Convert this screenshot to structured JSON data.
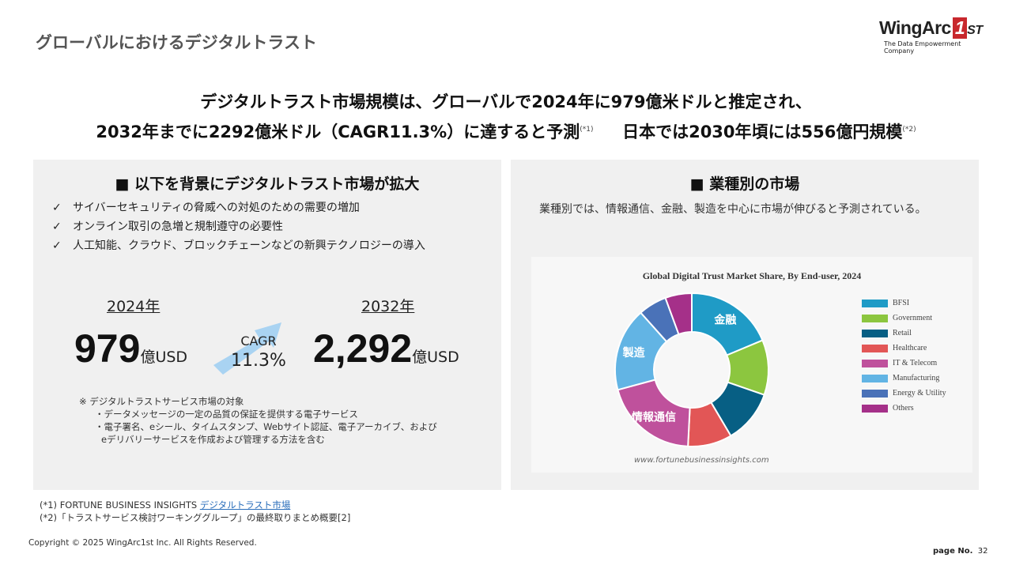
{
  "title": "グローバルにおけるデジタルトラスト",
  "logo": {
    "word": "WingArc",
    "one": "1",
    "st": "ST",
    "tagline": "The Data Empowerment Company"
  },
  "headline": {
    "line1": "デジタルトラスト市場規模は、グローバルで2024年に979億米ドルと推定され、",
    "line2a": "2032年までに2292億米ドル（CAGR11.3%）に達すると予測",
    "ref1": "(*1)",
    "line2b": "日本では2030年頃には556億円規模",
    "ref2": "(*2)"
  },
  "left": {
    "heading": "■ 以下を背景にデジタルトラスト市場が拡大",
    "check": "✓",
    "bullets": [
      "サイバーセキュリティの脅威への対処のための需要の増加",
      "オンライン取引の急増と規制遵守の必要性",
      "人工知能、クラウド、ブロックチェーンなどの新興テクノロジーの導入"
    ],
    "year1": "2024年",
    "value1": "979",
    "unit1": "億USD",
    "year2": "2032年",
    "value2": "2,292",
    "unit2": "億USD",
    "cagr_label": "CAGR",
    "cagr_value": "11.3%",
    "notes": [
      "※ デジタルトラストサービス市場の対象",
      "・データメッセージの一定の品質の保証を提供する電子サービス",
      "・電子署名、eシール、タイムスタンプ、Webサイト認証、電子アーカイブ、および",
      "eデリバリーサービスを作成および管理する方法を含む"
    ]
  },
  "right": {
    "heading": "■ 業種別の市場",
    "text": "業種別では、情報通信、金融、製造を中心に市場が伸びると予測されている。"
  },
  "chart_data": {
    "type": "pie",
    "donut": true,
    "title": "Global Digital Trust Market Share, By End-user, 2024",
    "legend": "right",
    "source": "www.fortunebusinessinsights.com",
    "categories": [
      "BFSI",
      "Government",
      "Retail",
      "Healthcare",
      "IT & Telecom",
      "Manufacturing",
      "Energy & Utility",
      "Others"
    ],
    "values": [
      18.7,
      11.6,
      11.2,
      9.3,
      20.0,
      17.6,
      6.0,
      5.6
    ],
    "colors": [
      "#1f9bc6",
      "#8cc63f",
      "#075f84",
      "#e25656",
      "#bf519c",
      "#62b4e4",
      "#4a72b8",
      "#a53089"
    ],
    "annotations": {
      "BFSI": "金融",
      "Manufacturing": "製造",
      "IT & Telecom": "情報通信"
    }
  },
  "footnotes": {
    "f1_prefix": "(*1) FORTUNE BUSINESS INSIGHTS ",
    "f1_link": "デジタルトラスト市場",
    "f2": "(*2)「トラストサービス検討ワーキンググループ」の最終取りまとめ概要[2]"
  },
  "copyright": "Copyright © 2025 WingArc1st Inc.  All Rights Reserved.",
  "page": {
    "label": "page No.",
    "number": "32"
  }
}
